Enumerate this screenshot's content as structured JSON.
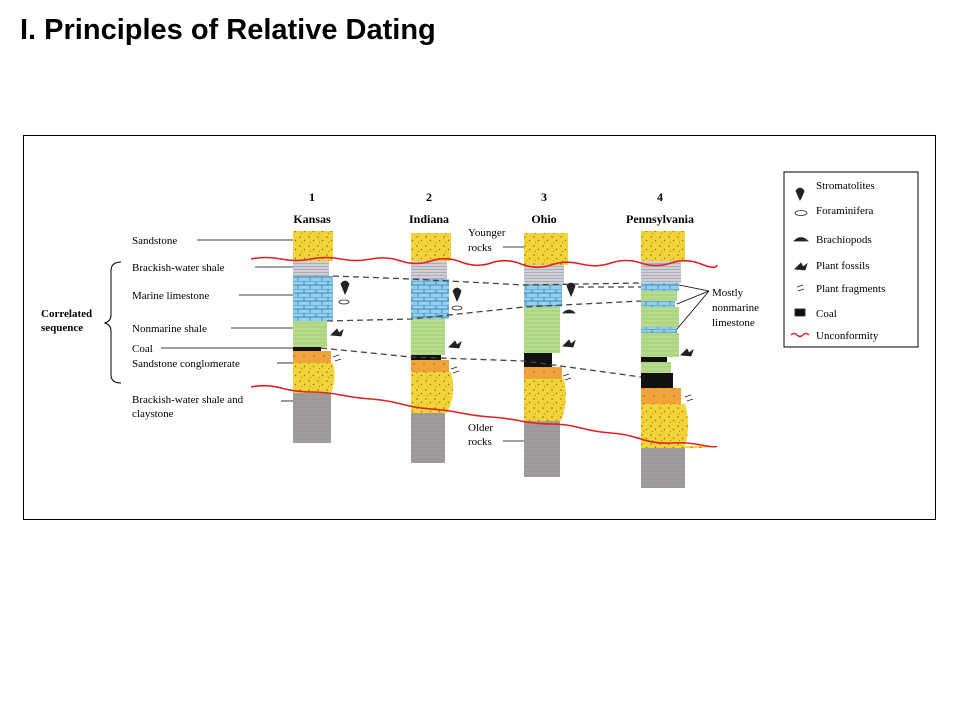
{
  "slide": {
    "title": "I. Principles of Relative Dating"
  },
  "columns": [
    {
      "number": "1",
      "state": "Kansas"
    },
    {
      "number": "2",
      "state": "Indiana"
    },
    {
      "number": "3",
      "state": "Ohio"
    },
    {
      "number": "4",
      "state": "Pennsylvania"
    }
  ],
  "rock_labels": {
    "sandstone": "Sandstone",
    "brackish_shale": "Brackish-water shale",
    "marine_limestone": "Marine limestone",
    "nonmarine_shale": "Nonmarine shale",
    "coal": "Coal",
    "conglomerate": "Sandstone conglomerate",
    "brackish_claystone_1": "Brackish-water shale and",
    "brackish_claystone_2": "claystone"
  },
  "correlated": {
    "line1": "Correlated",
    "line2": "sequence"
  },
  "annotations": {
    "younger_1": "Younger",
    "younger_2": "rocks",
    "older_1": "Older",
    "older_2": "rocks",
    "nonmarine_1": "Mostly",
    "nonmarine_2": "nonmarine",
    "nonmarine_3": "limestone"
  },
  "legend": [
    {
      "icon": "stromatolite-icon",
      "label": "Stromatolites"
    },
    {
      "icon": "foraminifera-icon",
      "label": "Foraminifera"
    },
    {
      "icon": "brachiopod-icon",
      "label": "Brachiopods"
    },
    {
      "icon": "plant-fossil-icon",
      "label": "Plant fossils"
    },
    {
      "icon": "plant-fragment-icon",
      "label": "Plant fragments"
    },
    {
      "icon": "coal-swatch-icon",
      "label": "Coal"
    },
    {
      "icon": "unconformity-line-icon",
      "label": "Unconformity"
    }
  ],
  "colors": {
    "sandstone": "#f2d43a",
    "conglomerate": "#f0a33a",
    "shale_gray": "#cfcfd6",
    "limestone": "#8fd0f0",
    "nonmarine": "#b5dc8a",
    "coal": "#111111",
    "basement": "#a29d9d",
    "unconformity": "#e02020"
  }
}
